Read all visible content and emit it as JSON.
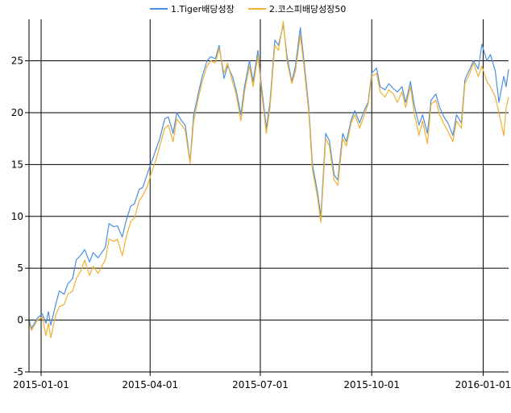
{
  "chart_data": {
    "type": "line",
    "title": "",
    "xlabel": "",
    "ylabel": "",
    "xlim": [
      "2014-12-22",
      "2016-01-22"
    ],
    "ylim": [
      -5,
      29
    ],
    "y_ticks": [
      -5,
      0,
      5,
      10,
      15,
      20,
      25
    ],
    "x_ticks": [
      "2015-01-01",
      "2015-04-01",
      "2015-07-01",
      "2015-10-01",
      "2016-01-01"
    ],
    "grid": true,
    "legend_position": "top-center",
    "series": [
      {
        "name": "1.Tiger배당성장",
        "color": "#4a8fe0",
        "points": [
          [
            "2014-12-22",
            0.0
          ],
          [
            "2014-12-24",
            -0.8
          ],
          [
            "2014-12-29",
            0.2
          ],
          [
            "2015-01-02",
            0.6
          ],
          [
            "2015-01-05",
            -0.3
          ],
          [
            "2015-01-07",
            0.8
          ],
          [
            "2015-01-09",
            -0.5
          ],
          [
            "2015-01-13",
            1.5
          ],
          [
            "2015-01-16",
            2.8
          ],
          [
            "2015-01-20",
            2.5
          ],
          [
            "2015-01-23",
            3.5
          ],
          [
            "2015-01-27",
            4.0
          ],
          [
            "2015-01-30",
            5.8
          ],
          [
            "2015-02-03",
            6.3
          ],
          [
            "2015-02-06",
            6.8
          ],
          [
            "2015-02-10",
            5.6
          ],
          [
            "2015-02-13",
            6.5
          ],
          [
            "2015-02-17",
            6.0
          ],
          [
            "2015-02-23",
            7.0
          ],
          [
            "2015-02-26",
            9.3
          ],
          [
            "2015-03-02",
            9.0
          ],
          [
            "2015-03-05",
            9.1
          ],
          [
            "2015-03-09",
            8.0
          ],
          [
            "2015-03-12",
            9.5
          ],
          [
            "2015-03-16",
            11.0
          ],
          [
            "2015-03-19",
            11.2
          ],
          [
            "2015-03-23",
            12.6
          ],
          [
            "2015-03-26",
            12.8
          ],
          [
            "2015-03-30",
            14.2
          ],
          [
            "2015-04-02",
            15.2
          ],
          [
            "2015-04-06",
            16.5
          ],
          [
            "2015-04-09",
            17.5
          ],
          [
            "2015-04-13",
            19.4
          ],
          [
            "2015-04-16",
            19.6
          ],
          [
            "2015-04-20",
            18.0
          ],
          [
            "2015-04-23",
            20.0
          ],
          [
            "2015-04-27",
            19.2
          ],
          [
            "2015-04-30",
            18.8
          ],
          [
            "2015-05-04",
            15.3
          ],
          [
            "2015-05-07",
            19.8
          ],
          [
            "2015-05-11",
            22.0
          ],
          [
            "2015-05-14",
            23.5
          ],
          [
            "2015-05-18",
            25.0
          ],
          [
            "2015-05-21",
            25.4
          ],
          [
            "2015-05-25",
            25.2
          ],
          [
            "2015-05-28",
            26.5
          ],
          [
            "2015-06-01",
            23.3
          ],
          [
            "2015-06-04",
            24.5
          ],
          [
            "2015-06-08",
            23.5
          ],
          [
            "2015-06-11",
            22.2
          ],
          [
            "2015-06-15",
            19.8
          ],
          [
            "2015-06-18",
            22.5
          ],
          [
            "2015-06-22",
            25.0
          ],
          [
            "2015-06-25",
            23.0
          ],
          [
            "2015-06-29",
            26.0
          ],
          [
            "2015-07-02",
            22.5
          ],
          [
            "2015-07-06",
            18.5
          ],
          [
            "2015-07-09",
            21.0
          ],
          [
            "2015-07-13",
            27.0
          ],
          [
            "2015-07-16",
            26.5
          ],
          [
            "2015-07-20",
            28.5
          ],
          [
            "2015-07-23",
            25.5
          ],
          [
            "2015-07-27",
            23.0
          ],
          [
            "2015-07-30",
            24.5
          ],
          [
            "2015-08-03",
            28.2
          ],
          [
            "2015-08-06",
            25.0
          ],
          [
            "2015-08-10",
            20.5
          ],
          [
            "2015-08-13",
            15.0
          ],
          [
            "2015-08-17",
            12.5
          ],
          [
            "2015-08-20",
            10.0
          ],
          [
            "2015-08-24",
            18.0
          ],
          [
            "2015-08-27",
            17.3
          ],
          [
            "2015-08-31",
            14.0
          ],
          [
            "2015-09-03",
            13.5
          ],
          [
            "2015-09-07",
            18.0
          ],
          [
            "2015-09-10",
            17.2
          ],
          [
            "2015-09-14",
            19.3
          ],
          [
            "2015-09-17",
            20.2
          ],
          [
            "2015-09-21",
            19.0
          ],
          [
            "2015-09-24",
            20.0
          ],
          [
            "2015-09-28",
            21.0
          ],
          [
            "2015-10-01",
            23.8
          ],
          [
            "2015-10-05",
            24.3
          ],
          [
            "2015-10-08",
            22.5
          ],
          [
            "2015-10-12",
            22.2
          ],
          [
            "2015-10-15",
            22.8
          ],
          [
            "2015-10-19",
            22.3
          ],
          [
            "2015-10-22",
            22.0
          ],
          [
            "2015-10-26",
            22.5
          ],
          [
            "2015-10-29",
            21.0
          ],
          [
            "2015-11-02",
            23.0
          ],
          [
            "2015-11-05",
            20.8
          ],
          [
            "2015-11-09",
            18.8
          ],
          [
            "2015-11-12",
            19.8
          ],
          [
            "2015-11-16",
            18.0
          ],
          [
            "2015-11-19",
            21.2
          ],
          [
            "2015-11-23",
            21.8
          ],
          [
            "2015-11-26",
            20.5
          ],
          [
            "2015-11-30",
            19.5
          ],
          [
            "2015-12-03",
            19.0
          ],
          [
            "2015-12-07",
            17.8
          ],
          [
            "2015-12-10",
            19.8
          ],
          [
            "2015-12-14",
            19.0
          ],
          [
            "2015-12-17",
            23.2
          ],
          [
            "2015-12-21",
            24.2
          ],
          [
            "2015-12-24",
            25.0
          ],
          [
            "2015-12-28",
            24.2
          ],
          [
            "2015-12-31",
            26.6
          ],
          [
            "2016-01-04",
            25.0
          ],
          [
            "2016-01-07",
            25.6
          ],
          [
            "2016-01-11",
            24.0
          ],
          [
            "2016-01-14",
            21.0
          ],
          [
            "2016-01-18",
            23.5
          ],
          [
            "2016-01-20",
            22.5
          ],
          [
            "2016-01-22",
            24.2
          ]
        ]
      },
      {
        "name": "2.코스피배당성장50",
        "color": "#f0b030",
        "points": [
          [
            "2014-12-22",
            -0.2
          ],
          [
            "2014-12-24",
            -1.0
          ],
          [
            "2014-12-29",
            0.0
          ],
          [
            "2015-01-02",
            0.3
          ],
          [
            "2015-01-05",
            -1.5
          ],
          [
            "2015-01-07",
            -0.3
          ],
          [
            "2015-01-09",
            -1.7
          ],
          [
            "2015-01-13",
            0.5
          ],
          [
            "2015-01-16",
            1.3
          ],
          [
            "2015-01-20",
            1.5
          ],
          [
            "2015-01-23",
            2.5
          ],
          [
            "2015-01-27",
            2.8
          ],
          [
            "2015-01-30",
            4.0
          ],
          [
            "2015-02-03",
            4.8
          ],
          [
            "2015-02-06",
            5.8
          ],
          [
            "2015-02-10",
            4.3
          ],
          [
            "2015-02-13",
            5.2
          ],
          [
            "2015-02-17",
            4.5
          ],
          [
            "2015-02-23",
            5.8
          ],
          [
            "2015-02-26",
            7.8
          ],
          [
            "2015-03-02",
            7.6
          ],
          [
            "2015-03-05",
            7.8
          ],
          [
            "2015-03-09",
            6.2
          ],
          [
            "2015-03-12",
            7.9
          ],
          [
            "2015-03-16",
            9.5
          ],
          [
            "2015-03-19",
            9.8
          ],
          [
            "2015-03-23",
            11.5
          ],
          [
            "2015-03-26",
            12.0
          ],
          [
            "2015-03-30",
            13.0
          ],
          [
            "2015-04-02",
            14.2
          ],
          [
            "2015-04-06",
            15.5
          ],
          [
            "2015-04-09",
            16.8
          ],
          [
            "2015-04-13",
            18.5
          ],
          [
            "2015-04-16",
            18.8
          ],
          [
            "2015-04-20",
            17.2
          ],
          [
            "2015-04-23",
            19.4
          ],
          [
            "2015-04-27",
            18.8
          ],
          [
            "2015-04-30",
            18.3
          ],
          [
            "2015-05-04",
            15.1
          ],
          [
            "2015-05-07",
            19.2
          ],
          [
            "2015-05-11",
            21.5
          ],
          [
            "2015-05-14",
            23.0
          ],
          [
            "2015-05-18",
            24.5
          ],
          [
            "2015-05-21",
            25.0
          ],
          [
            "2015-05-25",
            24.8
          ],
          [
            "2015-05-28",
            26.2
          ],
          [
            "2015-06-01",
            23.8
          ],
          [
            "2015-06-04",
            24.8
          ],
          [
            "2015-06-08",
            23.0
          ],
          [
            "2015-06-11",
            21.8
          ],
          [
            "2015-06-15",
            19.2
          ],
          [
            "2015-06-18",
            22.0
          ],
          [
            "2015-06-22",
            24.5
          ],
          [
            "2015-06-25",
            22.5
          ],
          [
            "2015-06-29",
            25.5
          ],
          [
            "2015-07-02",
            22.0
          ],
          [
            "2015-07-06",
            18.0
          ],
          [
            "2015-07-09",
            20.5
          ],
          [
            "2015-07-13",
            26.5
          ],
          [
            "2015-07-16",
            26.0
          ],
          [
            "2015-07-20",
            28.8
          ],
          [
            "2015-07-23",
            25.0
          ],
          [
            "2015-07-27",
            22.8
          ],
          [
            "2015-07-30",
            24.0
          ],
          [
            "2015-08-03",
            27.5
          ],
          [
            "2015-08-06",
            24.5
          ],
          [
            "2015-08-10",
            20.0
          ],
          [
            "2015-08-13",
            14.5
          ],
          [
            "2015-08-17",
            12.0
          ],
          [
            "2015-08-20",
            9.4
          ],
          [
            "2015-08-24",
            17.5
          ],
          [
            "2015-08-27",
            16.8
          ],
          [
            "2015-08-31",
            13.5
          ],
          [
            "2015-09-03",
            13.0
          ],
          [
            "2015-09-07",
            17.5
          ],
          [
            "2015-09-10",
            16.8
          ],
          [
            "2015-09-14",
            19.0
          ],
          [
            "2015-09-17",
            19.8
          ],
          [
            "2015-09-21",
            18.5
          ],
          [
            "2015-09-24",
            19.5
          ],
          [
            "2015-09-28",
            20.8
          ],
          [
            "2015-10-01",
            23.5
          ],
          [
            "2015-10-05",
            23.8
          ],
          [
            "2015-10-08",
            22.0
          ],
          [
            "2015-10-12",
            21.5
          ],
          [
            "2015-10-15",
            22.2
          ],
          [
            "2015-10-19",
            21.8
          ],
          [
            "2015-10-22",
            21.0
          ],
          [
            "2015-10-26",
            22.0
          ],
          [
            "2015-10-29",
            20.5
          ],
          [
            "2015-11-02",
            22.5
          ],
          [
            "2015-11-05",
            20.0
          ],
          [
            "2015-11-09",
            17.8
          ],
          [
            "2015-11-12",
            19.2
          ],
          [
            "2015-11-16",
            17.0
          ],
          [
            "2015-11-19",
            20.8
          ],
          [
            "2015-11-23",
            21.2
          ],
          [
            "2015-11-26",
            19.8
          ],
          [
            "2015-11-30",
            18.8
          ],
          [
            "2015-12-03",
            18.2
          ],
          [
            "2015-12-07",
            17.2
          ],
          [
            "2015-12-10",
            19.2
          ],
          [
            "2015-12-14",
            18.5
          ],
          [
            "2015-12-17",
            22.8
          ],
          [
            "2015-12-21",
            23.8
          ],
          [
            "2015-12-24",
            24.8
          ],
          [
            "2015-12-28",
            23.5
          ],
          [
            "2015-12-31",
            24.5
          ],
          [
            "2016-01-04",
            23.0
          ],
          [
            "2016-01-07",
            22.5
          ],
          [
            "2016-01-11",
            21.5
          ],
          [
            "2016-01-14",
            20.0
          ],
          [
            "2016-01-18",
            17.8
          ],
          [
            "2016-01-20",
            20.5
          ],
          [
            "2016-01-22",
            21.5
          ]
        ]
      }
    ]
  }
}
